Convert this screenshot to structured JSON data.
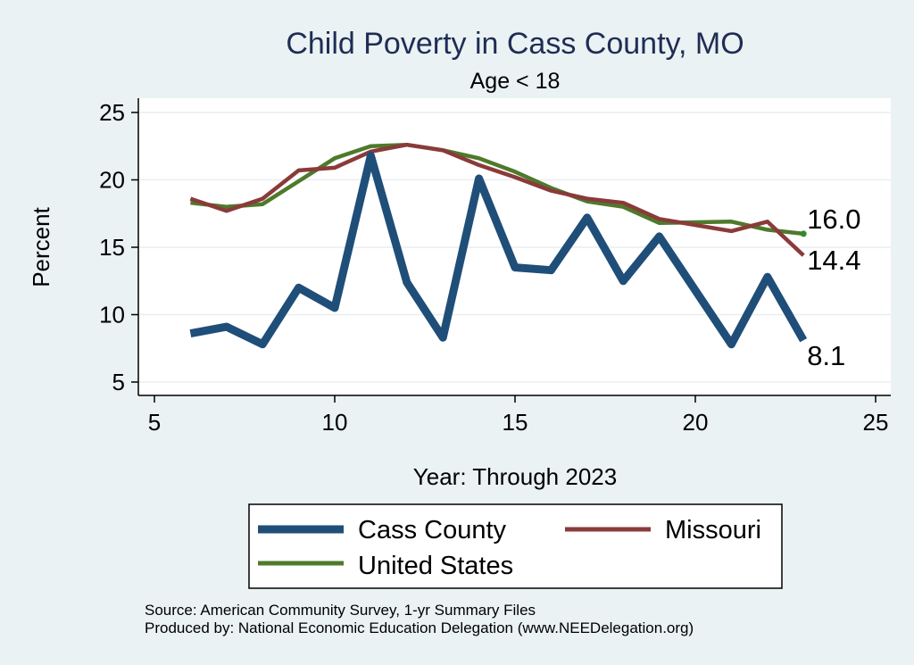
{
  "chart_data": {
    "type": "line",
    "title": "Child Poverty in Cass County, MO",
    "subtitle": "Age < 18",
    "xlabel": "Year: Through 2023",
    "ylabel": "Percent",
    "xlim": [
      5,
      25
    ],
    "ylim": [
      5,
      25
    ],
    "xticks": [
      5,
      10,
      15,
      20,
      25
    ],
    "yticks": [
      5,
      10,
      15,
      20,
      25
    ],
    "grid": true,
    "legend_position": "bottom",
    "series": [
      {
        "name": "Cass County",
        "color": "#1f4e79",
        "x": [
          6,
          7,
          8,
          9,
          10,
          11,
          12,
          13,
          14,
          15,
          16,
          17,
          18,
          19,
          21,
          22,
          23
        ],
        "values": [
          8.6,
          9.1,
          7.8,
          12.0,
          10.5,
          21.8,
          12.4,
          8.3,
          20.1,
          13.5,
          13.3,
          17.2,
          12.5,
          15.8,
          7.8,
          12.8,
          8.1
        ],
        "end_label": "8.1"
      },
      {
        "name": "Missouri",
        "color": "#8b3a3a",
        "x": [
          6,
          7,
          8,
          9,
          10,
          11,
          12,
          13,
          14,
          15,
          16,
          17,
          18,
          19,
          21,
          22,
          23
        ],
        "values": [
          18.6,
          17.7,
          18.6,
          20.7,
          20.9,
          22.1,
          22.6,
          22.2,
          21.1,
          20.2,
          19.2,
          18.6,
          18.3,
          17.1,
          16.2,
          16.9,
          14.4
        ],
        "end_label": "14.4"
      },
      {
        "name": "United States",
        "color": "#4e7a2b",
        "x": [
          6,
          7,
          8,
          9,
          10,
          11,
          12,
          13,
          14,
          15,
          16,
          17,
          18,
          19,
          21,
          22,
          23
        ],
        "values": [
          18.3,
          18.0,
          18.2,
          19.9,
          21.6,
          22.5,
          22.6,
          22.2,
          21.6,
          20.6,
          19.4,
          18.4,
          18.0,
          16.8,
          16.9,
          16.3,
          16.0
        ],
        "end_label": "16.0"
      }
    ],
    "source_lines": [
      "Source: American Community Survey, 1-yr Summary Files",
      "Produced by: National Economic Education Delegation (www.NEEDelegation.org)"
    ]
  }
}
